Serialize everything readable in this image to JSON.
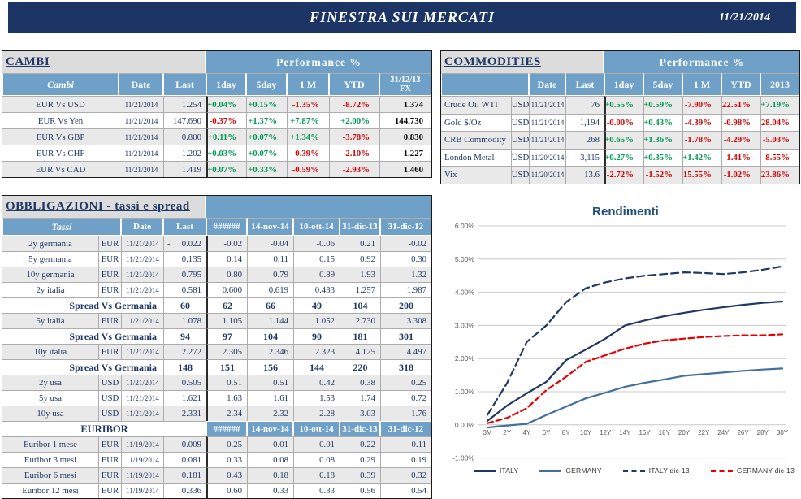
{
  "header": {
    "title": "FINESTRA SUI MERCATI",
    "date": "11/21/2014"
  },
  "colors": {
    "topbar": "#1C3564",
    "header_blue": "#6FA0C7",
    "navy": "#1F3864",
    "row_shade": "#E9E9E9",
    "green": "#009951",
    "red": "#D60000",
    "chart_italy": "#1F3864",
    "chart_germany": "#41719C",
    "chart_germany_dic13": "#E80000"
  },
  "cambi": {
    "title": "CAMBI",
    "perf_title": "Performance  %",
    "columns": [
      "Cambi",
      "Date",
      "Last",
      "1day",
      "5day",
      "1 M",
      "YTD",
      "31/12/13\nFX"
    ],
    "rows": [
      {
        "name": "EUR Vs USD",
        "date": "11/21/2014",
        "last": "1.254",
        "perf": [
          "+0.04%",
          "+0.15%",
          "-1.35%",
          "-8.72%"
        ],
        "fx": "1.374",
        "shade": true
      },
      {
        "name": "EUR Vs Yen",
        "date": "11/21/2014",
        "last": "147.690",
        "perf": [
          "-0.37%",
          "+1.37%",
          "+7.87%",
          "+2.00%"
        ],
        "fx": "144.730",
        "shade": false
      },
      {
        "name": "EUR Vs GBP",
        "date": "11/21/2014",
        "last": "0.800",
        "perf": [
          "+0.11%",
          "+0.07%",
          "+1.34%",
          "-3.78%"
        ],
        "fx": "0.830",
        "shade": true
      },
      {
        "name": "EUR Vs CHF",
        "date": "11/21/2014",
        "last": "1.202",
        "perf": [
          "+0.03%",
          "+0.07%",
          "-0.39%",
          "-2.10%"
        ],
        "fx": "1.227",
        "shade": false
      },
      {
        "name": "EUR Vs CAD",
        "date": "11/21/2014",
        "last": "1.419",
        "perf": [
          "+0.07%",
          "+0.33%",
          "-0.59%",
          "-2.93%"
        ],
        "fx": "1.460",
        "shade": true
      }
    ]
  },
  "commodities": {
    "title": "COMMODITIES",
    "perf_title": "Performance  %",
    "columns": [
      "",
      "Date",
      "Last",
      "1day",
      "5day",
      "1 M",
      "YTD",
      "2013"
    ],
    "rows": [
      {
        "name": "Crude Oil WTI",
        "ccy": "USD",
        "date": "11/21/2014",
        "last": "76",
        "perf": [
          "+0.55%",
          "+0.59%",
          "-7.90%",
          "-22.51%",
          "+7.19%"
        ],
        "shade": true
      },
      {
        "name": "Gold $/Oz",
        "ccy": "USD",
        "date": "11/21/2014",
        "last": "1,194",
        "perf": [
          "-0.00%",
          "+0.43%",
          "-4.39%",
          "-0.98%",
          "-28.04%"
        ],
        "shade": false
      },
      {
        "name": "CRB Commodity",
        "ccy": "USD",
        "date": "11/21/2014",
        "last": "268",
        "perf": [
          "+0.65%",
          "+1.36%",
          "-1.78%",
          "-4.29%",
          "-5.03%"
        ],
        "shade": true
      },
      {
        "name": "London Metal",
        "ccy": "USD",
        "date": "11/20/2014",
        "last": "3,115",
        "perf": [
          "+0.27%",
          "+0.35%",
          "+1.42%",
          "-1.41%",
          "-8.55%"
        ],
        "shade": false
      },
      {
        "name": "Vix",
        "ccy": "USD",
        "date": "11/20/2014",
        "last": "13.6",
        "perf": [
          "-2.72%",
          "-1.52%",
          "-15.55%",
          "-1.02%",
          "-23.86%"
        ],
        "shade": true
      }
    ]
  },
  "bonds": {
    "title": "OBBLIGAZIONI - tassi e spread",
    "columns": [
      "Tassi",
      "Date",
      "Last",
      "######",
      "14-nov-14",
      "10-ott-14",
      "31-dic-13",
      "31-dic-12"
    ],
    "rows": [
      {
        "type": "rate",
        "name": "2y germania",
        "ccy": "EUR",
        "date": "11/21/2014",
        "last": "- 0.022",
        "values": [
          "-0.02",
          "-0.04",
          "-0.06",
          "0.21",
          "-0.02"
        ],
        "shade": true
      },
      {
        "type": "rate",
        "name": "5y germania",
        "ccy": "EUR",
        "date": "11/21/2014",
        "last": "0.135",
        "values": [
          "0.14",
          "0.11",
          "0.15",
          "0.92",
          "0.30"
        ],
        "shade": false
      },
      {
        "type": "rate",
        "name": "10y germania",
        "ccy": "EUR",
        "date": "11/21/2014",
        "last": "0.795",
        "values": [
          "0.80",
          "0.79",
          "0.89",
          "1.93",
          "1.32"
        ],
        "shade": true
      },
      {
        "type": "rate",
        "name": "2y italia",
        "ccy": "EUR",
        "date": "11/21/2014",
        "last": "0.581",
        "values": [
          "0.600",
          "0.619",
          "0.433",
          "1.257",
          "1.987"
        ],
        "shade": false
      },
      {
        "type": "spread",
        "label": "Spread Vs Germania",
        "last": "60",
        "values": [
          "62",
          "66",
          "49",
          "104",
          "200"
        ]
      },
      {
        "type": "rate",
        "name": "5y italia",
        "ccy": "EUR",
        "date": "11/21/2014",
        "last": "1.078",
        "values": [
          "1.105",
          "1.144",
          "1.052",
          "2.730",
          "3.308"
        ],
        "shade": true
      },
      {
        "type": "spread",
        "label": "Spread Vs Germania",
        "last": "94",
        "values": [
          "97",
          "104",
          "90",
          "181",
          "301"
        ]
      },
      {
        "type": "rate",
        "name": "10y italia",
        "ccy": "EUR",
        "date": "11/21/2014",
        "last": "2.272",
        "values": [
          "2.305",
          "2.346",
          "2.323",
          "4.125",
          "4.497"
        ],
        "shade": true
      },
      {
        "type": "spread",
        "label": "Spread Vs Germania",
        "last": "148",
        "values": [
          "151",
          "156",
          "144",
          "220",
          "318"
        ]
      },
      {
        "type": "rate",
        "name": "2y usa",
        "ccy": "USD",
        "date": "11/21/2014",
        "last": "0.505",
        "values": [
          "0.51",
          "0.51",
          "0.42",
          "0.38",
          "0.25"
        ],
        "shade": true
      },
      {
        "type": "rate",
        "name": "5y usa",
        "ccy": "USD",
        "date": "11/21/2014",
        "last": "1.621",
        "values": [
          "1.63",
          "1.61",
          "1.53",
          "1.74",
          "0.72"
        ],
        "shade": false
      },
      {
        "type": "rate",
        "name": "10y usa",
        "ccy": "USD",
        "date": "11/21/2014",
        "last": "2.331",
        "values": [
          "2.34",
          "2.32",
          "2.28",
          "3.03",
          "1.76"
        ],
        "shade": true
      },
      {
        "type": "subhead",
        "label": "EURIBOR",
        "columns": [
          "######",
          "14-nov-14",
          "10-ott-14",
          "31-dic-13",
          "31-dic-12"
        ]
      },
      {
        "type": "rate",
        "name": "Euribor 1 mese",
        "ccy": "EUR",
        "date": "11/19/2014",
        "last": "0.009",
        "values": [
          "0.25",
          "0.01",
          "0.01",
          "0.22",
          "0.11"
        ],
        "shade": true
      },
      {
        "type": "rate",
        "name": "Euribor 3 mesi",
        "ccy": "EUR",
        "date": "11/19/2014",
        "last": "0.081",
        "values": [
          "0.33",
          "0.08",
          "0.08",
          "0.29",
          "0.19"
        ],
        "shade": false
      },
      {
        "type": "rate",
        "name": "Euribor 6 mesi",
        "ccy": "EUR",
        "date": "11/19/2014",
        "last": "0.181",
        "values": [
          "0.43",
          "0.18",
          "0.18",
          "0.39",
          "0.32"
        ],
        "shade": true
      },
      {
        "type": "rate",
        "name": "Euribor 12 mesi",
        "ccy": "EUR",
        "date": "11/19/2014",
        "last": "0.336",
        "values": [
          "0.60",
          "0.33",
          "0.33",
          "0.56",
          "0.54"
        ],
        "shade": false
      }
    ]
  },
  "chart_data": {
    "type": "line",
    "title": "Rendimenti",
    "x": [
      "3M",
      "2Y",
      "4Y",
      "6Y",
      "8Y",
      "10Y",
      "12Y",
      "14Y",
      "16Y",
      "18Y",
      "20Y",
      "22Y",
      "24Y",
      "26Y",
      "28Y",
      "30Y"
    ],
    "ylim": [
      -1,
      6
    ],
    "y_tick_labels": [
      "6.00%",
      "5.00%",
      "4.00%",
      "3.00%",
      "2.00%",
      "1.00%",
      "0.00%",
      "-1.00%"
    ],
    "grid": true,
    "legend_position": "bottom",
    "series": [
      {
        "name": "ITALY",
        "style": "solid",
        "color": "#1F3864",
        "values": [
          0.12,
          0.58,
          0.95,
          1.3,
          1.95,
          2.27,
          2.6,
          3.0,
          3.15,
          3.28,
          3.38,
          3.47,
          3.55,
          3.62,
          3.68,
          3.72
        ]
      },
      {
        "name": "GERMANY",
        "style": "solid",
        "color": "#41719C",
        "values": [
          -0.08,
          -0.02,
          0.03,
          0.3,
          0.55,
          0.8,
          0.97,
          1.15,
          1.27,
          1.37,
          1.48,
          1.53,
          1.58,
          1.63,
          1.67,
          1.7
        ]
      },
      {
        "name": "ITALY dic-13",
        "style": "dashed",
        "color": "#1F3864",
        "values": [
          0.3,
          1.26,
          2.5,
          3.0,
          3.7,
          4.12,
          4.3,
          4.42,
          4.5,
          4.55,
          4.6,
          4.58,
          4.55,
          4.6,
          4.68,
          4.78
        ]
      },
      {
        "name": "GERMANY dic-13",
        "style": "dashed",
        "color": "#E80000",
        "values": [
          0.05,
          0.21,
          0.5,
          1.05,
          1.45,
          1.9,
          2.1,
          2.3,
          2.45,
          2.55,
          2.6,
          2.65,
          2.68,
          2.7,
          2.7,
          2.73
        ]
      }
    ]
  }
}
